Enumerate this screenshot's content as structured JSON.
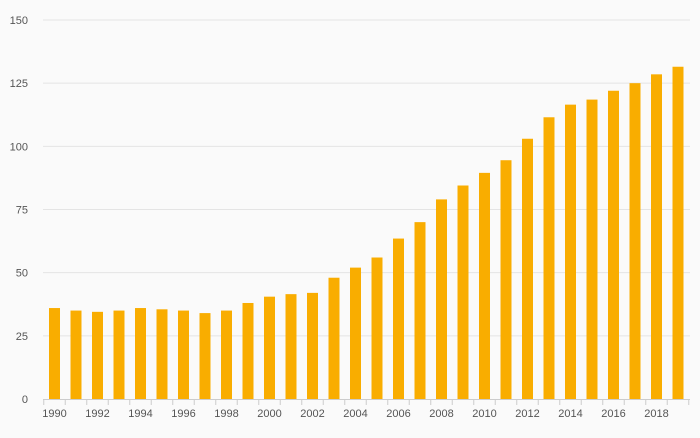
{
  "colors": {
    "bar": "#f9ad00",
    "grid": "#e4e4e4",
    "axis": "#cccccc",
    "tick_text": "#555555",
    "background": "#fafafa"
  },
  "chart_data": {
    "type": "bar",
    "title": "",
    "xlabel": "",
    "ylabel": "",
    "ylim": [
      0,
      150
    ],
    "yticks": [
      0,
      25,
      50,
      75,
      100,
      125,
      150
    ],
    "grid": true,
    "legend": "none",
    "categories": [
      "1990",
      "1991",
      "1992",
      "1993",
      "1994",
      "1995",
      "1996",
      "1997",
      "1998",
      "1999",
      "2000",
      "2001",
      "2002",
      "2003",
      "2004",
      "2005",
      "2006",
      "2007",
      "2008",
      "2009",
      "2010",
      "2011",
      "2012",
      "2013",
      "2014",
      "2015",
      "2016",
      "2017",
      "2018",
      "2019"
    ],
    "xtick_labels": [
      "1990",
      "1992",
      "1994",
      "1996",
      "1998",
      "2000",
      "2002",
      "2004",
      "2006",
      "2008",
      "2010",
      "2012",
      "2014",
      "2016",
      "2018"
    ],
    "values": [
      36,
      35,
      34.5,
      35,
      36,
      35.5,
      35,
      34,
      35,
      38,
      40.5,
      41.5,
      42,
      48,
      52,
      56,
      63.5,
      70,
      79,
      84.5,
      89.5,
      94.5,
      103,
      111.5,
      116.5,
      118.5,
      122,
      125,
      128.5,
      131.5
    ]
  }
}
